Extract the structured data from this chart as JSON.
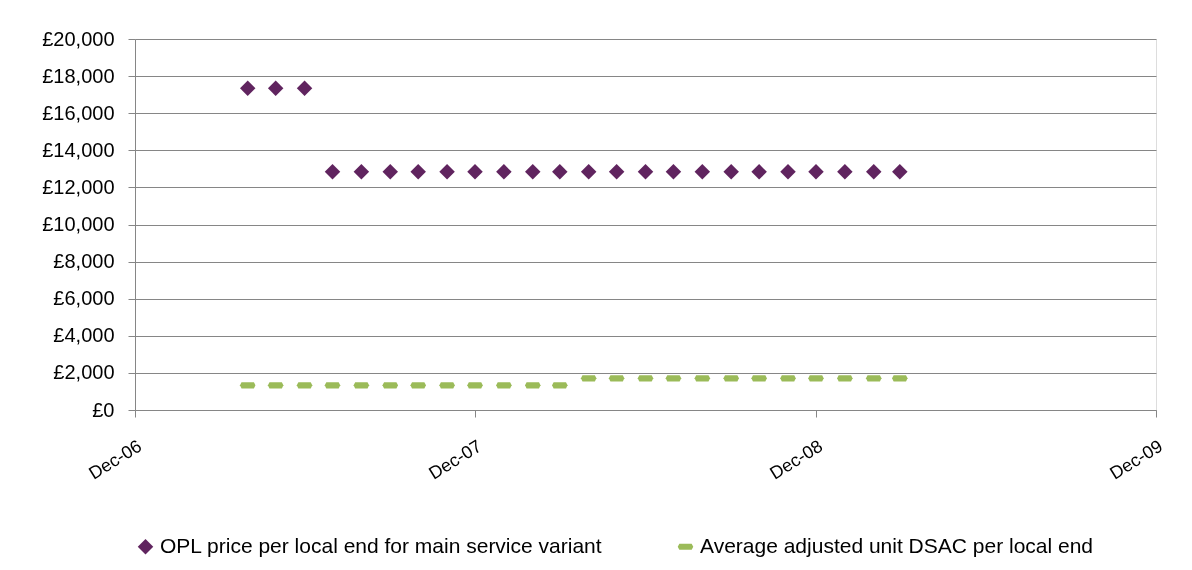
{
  "chart_data": {
    "type": "scatter",
    "x": [
      "2007-04",
      "2007-05",
      "2007-06",
      "2007-07",
      "2007-08",
      "2007-09",
      "2007-10",
      "2007-11",
      "2007-12",
      "2008-01",
      "2008-02",
      "2008-03",
      "2008-04",
      "2008-05",
      "2008-06",
      "2008-07",
      "2008-08",
      "2008-09",
      "2008-10",
      "2008-11",
      "2008-12",
      "2009-01",
      "2009-02",
      "2009-03"
    ],
    "series": [
      {
        "name": "OPL price per local end for main service variant",
        "color": "#60245f",
        "marker": "diamond",
        "values": [
          17340,
          17340,
          17340,
          12840,
          12840,
          12840,
          12840,
          12840,
          12840,
          12840,
          12840,
          12840,
          12840,
          12840,
          12840,
          12840,
          12840,
          12840,
          12840,
          12840,
          12840,
          12840,
          12840,
          12840
        ]
      },
      {
        "name": "Average adjusted unit DSAC per local end",
        "color": "#9bbb59",
        "values": [
          1330,
          1330,
          1330,
          1330,
          1330,
          1330,
          1330,
          1330,
          1330,
          1330,
          1330,
          1330,
          1710,
          1710,
          1710,
          1710,
          1710,
          1710,
          1710,
          1710,
          1710,
          1710,
          1710,
          1710
        ]
      }
    ],
    "xlim": [
      "2006-12",
      "2009-12"
    ],
    "xticks": [
      {
        "value": "2006-12",
        "label": "Dec-06"
      },
      {
        "value": "2007-12",
        "label": "Dec-07"
      },
      {
        "value": "2008-12",
        "label": "Dec-08"
      },
      {
        "value": "2009-12",
        "label": "Dec-09"
      }
    ],
    "ylim": [
      0,
      20000
    ],
    "yticks": [
      {
        "value": 0,
        "label": "£0"
      },
      {
        "value": 2000,
        "label": "£2,000"
      },
      {
        "value": 4000,
        "label": "£4,000"
      },
      {
        "value": 6000,
        "label": "£6,000"
      },
      {
        "value": 8000,
        "label": "£8,000"
      },
      {
        "value": 10000,
        "label": "£10,000"
      },
      {
        "value": 12000,
        "label": "£12,000"
      },
      {
        "value": 14000,
        "label": "£14,000"
      },
      {
        "value": 16000,
        "label": "£16,000"
      },
      {
        "value": 18000,
        "label": "£18,000"
      },
      {
        "value": 20000,
        "label": "£20,000"
      }
    ],
    "grid": "y",
    "legend": "bottom"
  }
}
